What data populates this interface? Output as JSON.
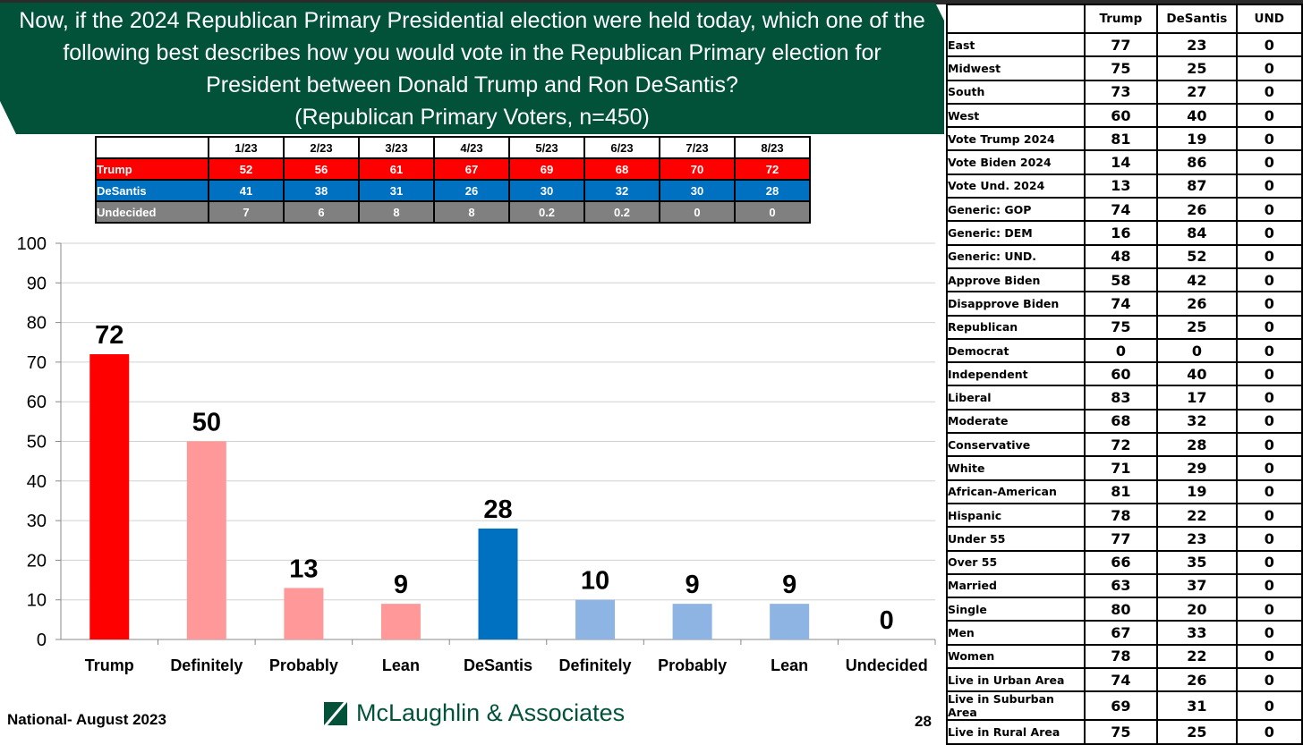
{
  "title": "Now, if the 2024 Republican Primary Presidential election were held today, which one of the following best describes how you would vote in the Republican Primary election for President between Donald Trump and Ron DeSantis?",
  "subtitle": "(Republican Primary Voters, n=450)",
  "trend_table": {
    "columns": [
      "",
      "1/23",
      "2/23",
      "3/23",
      "4/23",
      "5/23",
      "6/23",
      "7/23",
      "8/23"
    ],
    "rows": [
      {
        "label": "Trump",
        "values": [
          "52",
          "56",
          "61",
          "67",
          "69",
          "68",
          "70",
          "72"
        ]
      },
      {
        "label": "DeSantis",
        "values": [
          "41",
          "38",
          "31",
          "26",
          "30",
          "32",
          "30",
          "28"
        ]
      },
      {
        "label": "Undecided",
        "values": [
          "7",
          "6",
          "8",
          "8",
          "0.2",
          "0.2",
          "0",
          "0"
        ]
      }
    ]
  },
  "chart_data": {
    "type": "bar",
    "categories": [
      "Trump",
      "Definitely",
      "Probably",
      "Lean",
      "DeSantis",
      "Definitely",
      "Probably",
      "Lean",
      "Undecided"
    ],
    "values": [
      72,
      50,
      13,
      9,
      28,
      10,
      9,
      9,
      0
    ],
    "colors": [
      "#ff0000",
      "#ff9999",
      "#ff9999",
      "#ff9999",
      "#0070c0",
      "#8db4e2",
      "#8db4e2",
      "#8db4e2",
      "#808080"
    ],
    "ylim": [
      0,
      100
    ],
    "yticks": [
      0,
      10,
      20,
      30,
      40,
      50,
      60,
      70,
      80,
      90,
      100
    ],
    "grid": true,
    "data_labels": true
  },
  "side_table": {
    "columns": [
      "",
      "Trump",
      "DeSantis",
      "UND"
    ],
    "rows": [
      [
        "East",
        "77",
        "23",
        "0"
      ],
      [
        "Midwest",
        "75",
        "25",
        "0"
      ],
      [
        "South",
        "73",
        "27",
        "0"
      ],
      [
        "West",
        "60",
        "40",
        "0"
      ],
      [
        "Vote Trump 2024",
        "81",
        "19",
        "0"
      ],
      [
        "Vote Biden 2024",
        "14",
        "86",
        "0"
      ],
      [
        "Vote Und. 2024",
        "13",
        "87",
        "0"
      ],
      [
        "Generic: GOP",
        "74",
        "26",
        "0"
      ],
      [
        "Generic: DEM",
        "16",
        "84",
        "0"
      ],
      [
        "Generic: UND.",
        "48",
        "52",
        "0"
      ],
      [
        "Approve Biden",
        "58",
        "42",
        "0"
      ],
      [
        "Disapprove Biden",
        "74",
        "26",
        "0"
      ],
      [
        "Republican",
        "75",
        "25",
        "0"
      ],
      [
        "Democrat",
        "0",
        "0",
        "0"
      ],
      [
        "Independent",
        "60",
        "40",
        "0"
      ],
      [
        "Liberal",
        "83",
        "17",
        "0"
      ],
      [
        "Moderate",
        "68",
        "32",
        "0"
      ],
      [
        "Conservative",
        "72",
        "28",
        "0"
      ],
      [
        "White",
        "71",
        "29",
        "0"
      ],
      [
        "African-American",
        "81",
        "19",
        "0"
      ],
      [
        "Hispanic",
        "78",
        "22",
        "0"
      ],
      [
        "Under 55",
        "77",
        "23",
        "0"
      ],
      [
        "Over 55",
        "66",
        "35",
        "0"
      ],
      [
        "Married",
        "63",
        "37",
        "0"
      ],
      [
        "Single",
        "80",
        "20",
        "0"
      ],
      [
        "Men",
        "67",
        "33",
        "0"
      ],
      [
        "Women",
        "78",
        "22",
        "0"
      ],
      [
        "Live in Urban Area",
        "74",
        "26",
        "0"
      ],
      [
        "Live in Suburban Area",
        "69",
        "31",
        "0"
      ],
      [
        "Live in Rural Area",
        "75",
        "25",
        "0"
      ]
    ]
  },
  "footer": {
    "left": "National- August 2023",
    "logo": "McLaughlin & Associates",
    "page": "28"
  },
  "colors": {
    "header": "#02523a",
    "trump": "#ff0000",
    "desantis": "#0070c0",
    "undecided": "#808080"
  }
}
